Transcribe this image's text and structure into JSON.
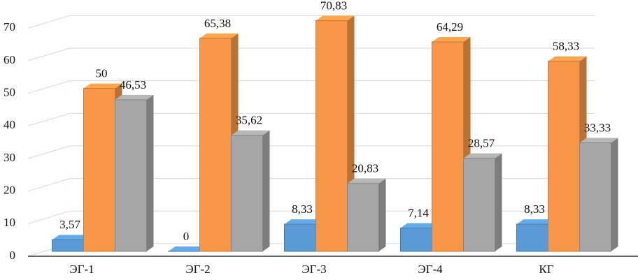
{
  "chart_data": {
    "type": "bar3d",
    "categories": [
      "ЭГ-1",
      "ЭГ-2",
      "ЭГ-3",
      "ЭГ-4",
      "КГ"
    ],
    "series": [
      {
        "color": "#5b9bd5",
        "values": [
          3.57,
          0,
          8.33,
          7.14,
          8.33
        ],
        "value_labels": [
          "3,57",
          "0",
          "8,33",
          "7,14",
          "8,33"
        ]
      },
      {
        "color": "#f79646",
        "values": [
          50,
          65.38,
          70.83,
          64.29,
          58.33
        ],
        "value_labels": [
          "50",
          "65,38",
          "70,83",
          "64,29",
          "58,33"
        ]
      },
      {
        "color": "#a6a6a6",
        "values": [
          46.53,
          35.62,
          20.83,
          28.57,
          33.33
        ],
        "value_labels": [
          "46,53",
          "35,62",
          "20,83",
          "28,57",
          "33,33"
        ]
      }
    ],
    "ylim": [
      0,
      75
    ],
    "yticks": [
      0,
      10,
      20,
      30,
      40,
      50,
      60,
      70
    ],
    "grid": true
  }
}
